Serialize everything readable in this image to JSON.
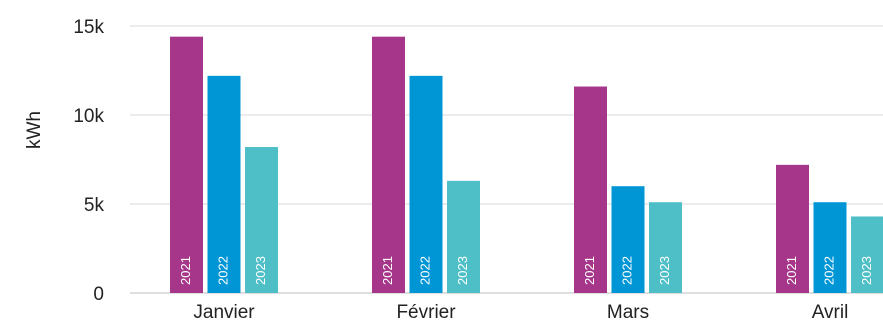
{
  "chart_data": {
    "type": "bar",
    "ylabel": "kWh",
    "xlabel": "",
    "ylim": [
      0,
      15000
    ],
    "yticks": [
      {
        "value": 0,
        "label": "0"
      },
      {
        "value": 5000,
        "label": "5k"
      },
      {
        "value": 10000,
        "label": "10k"
      },
      {
        "value": 15000,
        "label": "15k"
      }
    ],
    "grid": true,
    "categories": [
      "Janvier",
      "Février",
      "Mars",
      "Avril"
    ],
    "series": [
      {
        "name": "2021",
        "color": "#a6368a",
        "values": [
          14400,
          14400,
          11600,
          7200
        ]
      },
      {
        "name": "2022",
        "color": "#0096d6",
        "values": [
          12200,
          12200,
          6000,
          5100
        ]
      },
      {
        "name": "2023",
        "color": "#4ebfc7",
        "values": [
          8200,
          6300,
          5100,
          4300
        ]
      }
    ]
  }
}
